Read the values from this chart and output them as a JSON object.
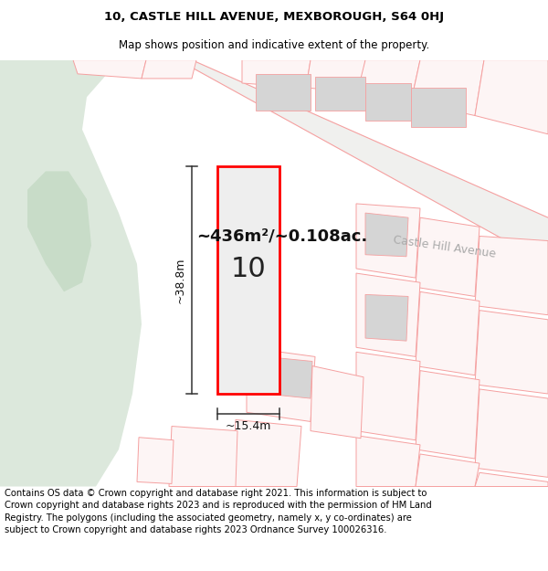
{
  "title_line1": "10, CASTLE HILL AVENUE, MEXBOROUGH, S64 0HJ",
  "title_line2": "Map shows position and indicative extent of the property.",
  "footer_text": "Contains OS data © Crown copyright and database right 2021. This information is subject to Crown copyright and database rights 2023 and is reproduced with the permission of HM Land Registry. The polygons (including the associated geometry, namely x, y co-ordinates) are subject to Crown copyright and database rights 2023 Ordnance Survey 100026316.",
  "area_label": "~436m²/~0.108ac.",
  "street_label": "Castle Hill Avenue",
  "number_label": "10",
  "width_label": "~15.4m",
  "height_label": "~38.8m",
  "map_bg": "#f7f7f5",
  "green_area_color": "#dce8dc",
  "plot_outline": "#ff0000",
  "other_plots_outline": "#f5a0a0",
  "dim_line_color": "#333333",
  "title_fontsize": 9.5,
  "subtitle_fontsize": 8.5,
  "footer_fontsize": 7.2,
  "area_fontsize": 13,
  "number_fontsize": 22,
  "street_fontsize": 9
}
